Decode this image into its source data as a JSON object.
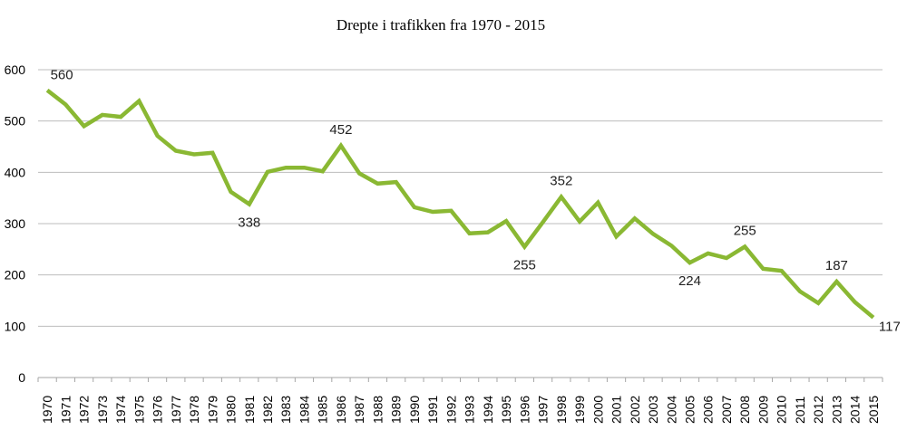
{
  "chart_data": {
    "type": "line",
    "title": "Drepte i trafikken fra 1970 - 2015",
    "xlabel": "",
    "ylabel": "",
    "ylim": [
      0,
      600
    ],
    "yticks": [
      0,
      100,
      200,
      300,
      400,
      500,
      600
    ],
    "grid": true,
    "line_color": "#8ab833",
    "categories": [
      "1970",
      "1971",
      "1972",
      "1973",
      "1974",
      "1975",
      "1976",
      "1977",
      "1978",
      "1979",
      "1980",
      "1981",
      "1982",
      "1983",
      "1984",
      "1985",
      "1986",
      "1987",
      "1988",
      "1989",
      "1990",
      "1991",
      "1992",
      "1993",
      "1994",
      "1995",
      "1996",
      "1997",
      "1998",
      "1999",
      "2000",
      "2001",
      "2002",
      "2003",
      "2004",
      "2005",
      "2006",
      "2007",
      "2008",
      "2009",
      "2010",
      "2011",
      "2012",
      "2013",
      "2014",
      "2015"
    ],
    "series": [
      {
        "values": [
          560,
          532,
          490,
          512,
          508,
          539,
          471,
          442,
          435,
          438,
          362,
          338,
          401,
          409,
          409,
          402,
          452,
          398,
          378,
          381,
          332,
          323,
          325,
          281,
          283,
          305,
          255,
          303,
          352,
          304,
          341,
          275,
          310,
          280,
          257,
          224,
          242,
          233,
          255,
          212,
          208,
          168,
          145,
          187,
          147,
          117
        ]
      }
    ],
    "data_labels": [
      {
        "year": "1970",
        "text": "560",
        "position": "above"
      },
      {
        "year": "1981",
        "text": "338",
        "position": "below"
      },
      {
        "year": "1986",
        "text": "452",
        "position": "above"
      },
      {
        "year": "1996",
        "text": "255",
        "position": "below"
      },
      {
        "year": "1998",
        "text": "352",
        "position": "above"
      },
      {
        "year": "2005",
        "text": "224",
        "position": "below"
      },
      {
        "year": "2008",
        "text": "255",
        "position": "above"
      },
      {
        "year": "2013",
        "text": "187",
        "position": "above"
      },
      {
        "year": "2015",
        "text": "117",
        "position": "below"
      }
    ]
  }
}
